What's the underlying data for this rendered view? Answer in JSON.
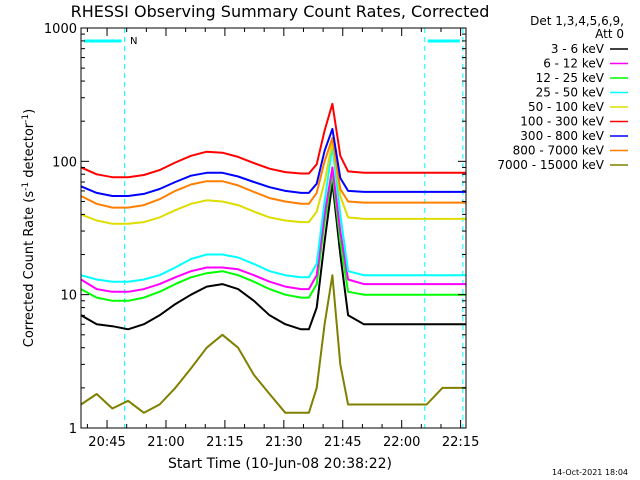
{
  "chart_data": {
    "type": "line",
    "title": "RHESSI Observing Summary Count Rates, Corrected",
    "xlabel": "Start Time (10-Jun-08 20:38:22)",
    "ylabel_parts": [
      "Corrected Count Rate (s",
      "-1",
      " detector",
      "-1",
      ")"
    ],
    "yscale": "log",
    "ylim": [
      1,
      1000
    ],
    "xlim_minutes_after_20_38_22": [
      0,
      98
    ],
    "x_ticks": [
      {
        "label": "20:45",
        "minutes": 6.63
      },
      {
        "label": "21:00",
        "minutes": 21.63
      },
      {
        "label": "21:15",
        "minutes": 36.63
      },
      {
        "label": "21:30",
        "minutes": 51.63
      },
      {
        "label": "21:45",
        "minutes": 66.63
      },
      {
        "label": "22:00",
        "minutes": 81.63
      },
      {
        "label": "22:15",
        "minutes": 96.63
      }
    ],
    "y_ticks": [
      {
        "label": "1",
        "value": 1
      },
      {
        "label": "10",
        "value": 10
      },
      {
        "label": "100",
        "value": 100
      },
      {
        "label": "1000",
        "value": 1000
      }
    ],
    "legend_header": [
      "Det 1,3,4,5,6,9,",
      "Att 0"
    ],
    "legend_position": "right",
    "annotations": {
      "night_marker": "N",
      "footer_date": "14-Oct-2021 18:04"
    },
    "shaded_intervals_minutes": [
      [
        0,
        11.1
      ],
      [
        87.5,
        97.2
      ]
    ],
    "x": [
      0,
      4,
      8,
      12,
      16,
      20,
      24,
      28,
      32,
      36,
      40,
      44,
      48,
      52,
      56,
      58,
      60,
      62,
      64,
      66,
      68,
      72,
      76,
      80,
      84,
      88,
      92,
      96,
      98
    ],
    "series": [
      {
        "name": "3 - 6 keV",
        "color": "#000000",
        "values": [
          7,
          6,
          5.8,
          5.5,
          6,
          7,
          8.5,
          10,
          11.5,
          12,
          11,
          9,
          7,
          6,
          5.5,
          5.5,
          8,
          25,
          70,
          20,
          7,
          6,
          6,
          6,
          6,
          6,
          6,
          6,
          6
        ]
      },
      {
        "name": "6 - 12 keV",
        "color": "#ff00ff",
        "values": [
          13,
          11,
          10.5,
          10.5,
          11,
          12,
          13.5,
          15,
          16,
          16,
          15.5,
          14,
          12.5,
          11.5,
          11,
          11,
          14,
          40,
          90,
          30,
          13,
          12,
          12,
          12,
          12,
          12,
          12,
          12,
          12
        ]
      },
      {
        "name": "12 - 25 keV",
        "color": "#00ff00",
        "values": [
          11,
          9.5,
          9,
          9,
          9.5,
          10.5,
          12,
          13.5,
          14.5,
          15,
          14,
          12.5,
          11,
          10,
          9.5,
          9.5,
          12,
          35,
          80,
          25,
          10.5,
          10,
          10,
          10,
          10,
          10,
          10,
          10,
          10
        ]
      },
      {
        "name": "25 - 50 keV",
        "color": "#00ffff",
        "values": [
          14,
          13,
          12.5,
          12.5,
          13,
          14,
          16,
          18.5,
          20,
          20,
          19,
          17,
          15,
          14,
          13.5,
          13.5,
          17,
          50,
          130,
          40,
          15,
          14,
          14,
          14,
          14,
          14,
          14,
          14,
          14
        ]
      },
      {
        "name": "50 - 100 keV",
        "color": "#dddd00",
        "values": [
          40,
          36,
          34,
          34,
          35,
          38,
          43,
          48,
          51,
          50,
          47,
          42,
          38,
          36,
          35,
          35,
          42,
          70,
          140,
          55,
          38,
          37,
          37,
          37,
          37,
          37,
          37,
          37,
          37
        ]
      },
      {
        "name": "100 - 300 keV",
        "color": "#ff0000",
        "values": [
          90,
          80,
          76,
          76,
          79,
          86,
          98,
          110,
          118,
          116,
          108,
          97,
          88,
          83,
          81,
          81,
          95,
          170,
          270,
          110,
          84,
          82,
          82,
          82,
          82,
          82,
          82,
          82,
          82
        ]
      },
      {
        "name": "300 - 800 keV",
        "color": "#0000ff",
        "values": [
          65,
          58,
          55,
          55,
          57,
          62,
          70,
          78,
          82,
          82,
          77,
          70,
          64,
          60,
          58,
          58,
          68,
          120,
          175,
          75,
          60,
          59,
          59,
          59,
          59,
          59,
          59,
          59,
          59
        ]
      },
      {
        "name": "800 - 7000 keV",
        "color": "#ff7f00",
        "values": [
          55,
          48,
          45,
          45,
          47,
          52,
          60,
          67,
          71,
          71,
          66,
          59,
          53,
          50,
          48,
          48,
          58,
          100,
          150,
          62,
          50,
          49,
          49,
          49,
          49,
          49,
          49,
          49,
          49
        ]
      },
      {
        "name": "7000 - 15000 keV",
        "color": "#808000",
        "values": [
          1.5,
          1.8,
          1.4,
          1.6,
          1.3,
          1.5,
          2,
          2.8,
          4,
          5,
          4,
          2.5,
          1.8,
          1.3,
          1.3,
          1.3,
          2,
          6,
          14,
          3,
          1.5,
          1.5,
          1.5,
          1.5,
          1.5,
          1.5,
          2,
          2,
          2
        ]
      }
    ]
  }
}
